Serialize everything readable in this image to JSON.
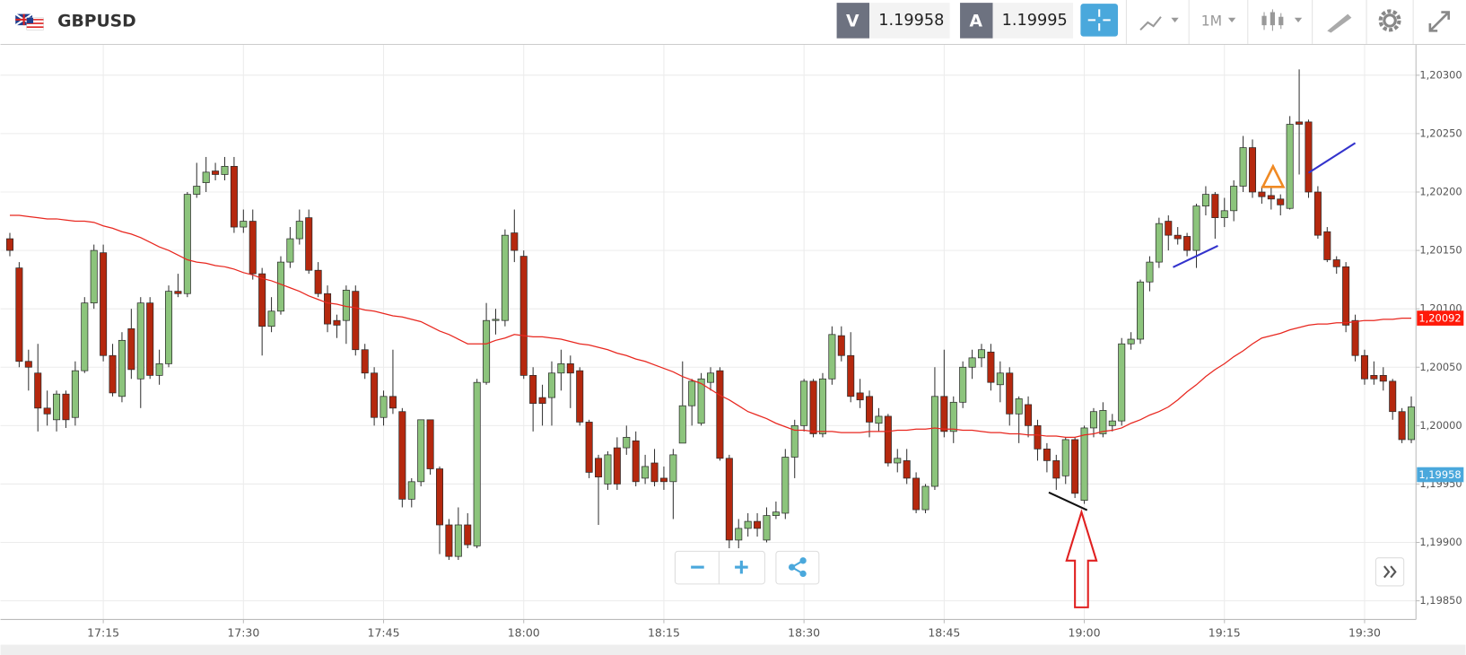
{
  "toolbar": {
    "symbol": "GBPUSD",
    "bid_label": "V",
    "bid": 1.19958,
    "ask_label": "A",
    "ask": 1.19995,
    "timeframe": "1M"
  },
  "chart_data": {
    "type": "candlestick",
    "categories": [
      null,
      null,
      null,
      null,
      null,
      null,
      null,
      null,
      null,
      null,
      "17:15",
      null,
      null,
      null,
      null,
      null,
      null,
      null,
      null,
      null,
      null,
      null,
      null,
      null,
      null,
      "17:30",
      null,
      null,
      null,
      null,
      null,
      null,
      null,
      null,
      null,
      null,
      null,
      null,
      null,
      null,
      "17:45",
      null,
      null,
      null,
      null,
      null,
      null,
      null,
      null,
      null,
      null,
      null,
      null,
      null,
      null,
      "18:00",
      null,
      null,
      null,
      null,
      null,
      null,
      null,
      null,
      null,
      null,
      null,
      null,
      null,
      null,
      "18:15",
      null,
      null,
      null,
      null,
      null,
      null,
      null,
      null,
      null,
      null,
      null,
      null,
      null,
      null,
      "18:30",
      null,
      null,
      null,
      null,
      null,
      null,
      null,
      null,
      null,
      null,
      null,
      null,
      null,
      null,
      "18:45",
      null,
      null,
      null,
      null,
      null,
      null,
      null,
      null,
      null,
      null,
      null,
      null,
      null,
      null,
      "19:00",
      null,
      null,
      null,
      null,
      null,
      null,
      null,
      null,
      null,
      null,
      null,
      null,
      null,
      null,
      "19:15",
      null,
      null,
      null,
      null,
      null,
      null,
      null,
      null,
      null,
      null,
      null,
      null,
      null,
      null,
      "19:30",
      null,
      null,
      null,
      null,
      null
    ],
    "open": [
      1.2016,
      1.20135,
      1.20055,
      1.20045,
      1.20015,
      1.20005,
      1.20027,
      1.20007,
      1.20047,
      1.20105,
      1.20148,
      1.2006,
      1.20025,
      1.20083,
      1.2004,
      1.20105,
      1.20043,
      1.20053,
      1.20115,
      1.20113,
      1.20198,
      1.20208,
      1.20218,
      1.20215,
      1.20222,
      1.2017,
      1.20175,
      1.2013,
      1.20085,
      1.20098,
      1.2014,
      1.2016,
      1.20178,
      1.20133,
      1.20113,
      1.2009,
      1.2009,
      1.20115,
      1.20065,
      1.20045,
      1.20007,
      1.20025,
      1.20012,
      1.19937,
      1.19952,
      1.20005,
      1.19963,
      1.19915,
      1.19888,
      1.19915,
      1.19897,
      1.20037,
      1.2009,
      1.2009,
      1.20165,
      1.20145,
      1.20043,
      1.20024,
      1.20024,
      1.20045,
      1.20053,
      1.20047,
      1.20003,
      1.19972,
      1.1995,
      1.19981,
      1.19981,
      1.19987,
      1.19955,
      1.19968,
      1.19955,
      1.19952,
      1.19985,
      1.20017,
      1.20002,
      1.20037,
      1.20047,
      1.19972,
      1.19902,
      1.19912,
      1.19918,
      1.19902,
      1.19923,
      1.19925,
      1.19973,
      1.2,
      1.20038,
      1.19993,
      1.2004,
      1.20077,
      1.2006,
      1.20028,
      1.20025,
      1.20002,
      1.20008,
      1.19968,
      1.1997,
      1.19955,
      1.19928,
      1.19948,
      1.20025,
      1.19995,
      1.2002,
      1.2005,
      1.20058,
      1.20063,
      1.20035,
      1.20045,
      1.2001,
      1.20018,
      1.2,
      1.1998,
      1.1997,
      1.19957,
      1.19988,
      1.19936,
      1.19998,
      1.19993,
      1.2,
      1.20004,
      1.2007,
      1.20074,
      1.20123,
      1.2014,
      1.20175,
      1.20163,
      1.20162,
      1.2015,
      1.20188,
      1.20198,
      1.20178,
      1.20184,
      1.20205,
      1.20238,
      1.202,
      1.20197,
      1.20194,
      1.20186,
      1.2026,
      1.2026,
      1.202,
      1.20166,
      1.20142,
      1.20136,
      1.2009,
      1.2006,
      1.20043,
      1.20043,
      1.20038,
      1.20012,
      1.19988
    ],
    "high": [
      1.20165,
      1.2014,
      1.20065,
      1.2007,
      1.2003,
      1.2003,
      1.2003,
      1.20055,
      1.2011,
      1.20155,
      1.20155,
      1.2007,
      1.2008,
      1.201,
      1.2011,
      1.2011,
      1.20065,
      1.2012,
      1.2013,
      1.202,
      1.20225,
      1.2023,
      1.20225,
      1.2023,
      1.2023,
      1.20185,
      1.20185,
      1.20135,
      1.2011,
      1.20145,
      1.2017,
      1.20185,
      1.20185,
      1.2014,
      1.2012,
      1.20095,
      1.2012,
      1.2012,
      1.2007,
      1.2005,
      1.2003,
      1.20065,
      1.20015,
      1.19955,
      1.20005,
      1.20005,
      1.19965,
      1.1992,
      1.1993,
      1.19925,
      1.2004,
      1.20105,
      1.201,
      1.20168,
      1.20185,
      1.2015,
      1.2005,
      1.20035,
      1.20055,
      1.20065,
      1.2006,
      1.2005,
      1.20005,
      1.19975,
      1.19978,
      1.1999,
      1.2,
      1.19995,
      1.19975,
      1.1998,
      1.19965,
      1.1998,
      1.20055,
      1.2004,
      1.20045,
      1.2005,
      1.2005,
      1.19975,
      1.1992,
      1.19925,
      1.19925,
      1.1993,
      1.19935,
      1.1998,
      1.20005,
      1.2004,
      1.2004,
      1.20045,
      1.20085,
      1.20085,
      1.2008,
      1.2004,
      1.2003,
      1.20015,
      1.2001,
      1.1998,
      1.1998,
      1.1996,
      1.1995,
      1.2005,
      1.20065,
      1.20025,
      1.20055,
      1.20065,
      1.2007,
      1.2007,
      1.20055,
      1.2005,
      1.20025,
      1.20025,
      1.20005,
      1.19985,
      1.19975,
      1.1999,
      1.1999,
      1.2,
      1.20015,
      1.2002,
      1.2001,
      1.20075,
      1.2008,
      1.20125,
      1.20145,
      1.20178,
      1.2018,
      1.2017,
      1.20165,
      1.2019,
      1.20205,
      1.202,
      1.20195,
      1.2021,
      1.20248,
      1.20245,
      1.20205,
      1.20205,
      1.20198,
      1.20265,
      1.20305,
      1.20262,
      1.20205,
      1.2017,
      1.20145,
      1.2014,
      1.20095,
      1.20065,
      1.20055,
      1.2005,
      1.2004,
      1.20015,
      1.20025
    ],
    "low": [
      1.20145,
      1.2005,
      1.2003,
      1.19995,
      1.2,
      1.19995,
      1.19998,
      1.2,
      1.20045,
      1.201,
      1.20055,
      1.20025,
      1.2002,
      1.2004,
      1.20015,
      1.2004,
      1.20035,
      1.2005,
      1.2011,
      1.2011,
      1.20195,
      1.202,
      1.2021,
      1.2021,
      1.20165,
      1.20165,
      1.20125,
      1.2006,
      1.2008,
      1.20095,
      1.20135,
      1.20155,
      1.2013,
      1.2011,
      1.2008,
      1.20075,
      1.2007,
      1.2006,
      1.2004,
      1.2,
      1.2,
      1.2001,
      1.1993,
      1.1993,
      1.19948,
      1.19958,
      1.1989,
      1.19885,
      1.19885,
      1.19895,
      1.19895,
      1.20035,
      1.20078,
      1.20085,
      1.2014,
      1.2004,
      1.19995,
      1.2,
      1.2,
      1.2003,
      1.20015,
      1.2,
      1.19955,
      1.19915,
      1.19945,
      1.19945,
      1.19975,
      1.19948,
      1.1995,
      1.19948,
      1.19945,
      1.1992,
      1.19985,
      1.2,
      1.2,
      1.2003,
      1.1997,
      1.19895,
      1.19895,
      1.19905,
      1.19905,
      1.199,
      1.1992,
      1.1992,
      1.19955,
      1.19995,
      1.1999,
      1.1999,
      1.20035,
      1.20055,
      1.2002,
      1.20015,
      1.1999,
      1.19995,
      1.19965,
      1.1996,
      1.1995,
      1.19925,
      1.19925,
      1.19945,
      1.1999,
      1.19985,
      1.20015,
      1.2004,
      1.2005,
      1.2003,
      1.2002,
      1.2,
      1.19985,
      1.1999,
      1.1997,
      1.1996,
      1.19945,
      1.1995,
      1.19938,
      1.19933,
      1.1999,
      1.1999,
      1.19995,
      1.2,
      1.20065,
      1.2007,
      1.20115,
      1.20135,
      1.2015,
      1.20155,
      1.20145,
      1.20135,
      1.2018,
      1.2016,
      1.2017,
      1.20175,
      1.202,
      1.20195,
      1.2019,
      1.20185,
      1.2018,
      1.20185,
      1.20215,
      1.20195,
      1.2016,
      1.2014,
      1.2013,
      1.2008,
      1.20055,
      1.20035,
      1.20035,
      1.2003,
      1.20005,
      1.19985,
      1.19985
    ],
    "close": [
      1.2015,
      1.20055,
      1.2005,
      1.20015,
      1.2001,
      1.20027,
      1.20005,
      1.20047,
      1.20105,
      1.2015,
      1.2006,
      1.20028,
      1.20073,
      1.20048,
      1.20105,
      1.20043,
      1.20053,
      1.20115,
      1.20113,
      1.20198,
      1.20205,
      1.20217,
      1.20215,
      1.20222,
      1.2017,
      1.20175,
      1.2013,
      1.20085,
      1.20098,
      1.2014,
      1.2016,
      1.20175,
      1.20133,
      1.20113,
      1.20087,
      1.20086,
      1.20116,
      1.20065,
      1.20045,
      1.20007,
      1.20025,
      1.20015,
      1.19937,
      1.19952,
      1.20005,
      1.19963,
      1.19915,
      1.19888,
      1.19915,
      1.19898,
      1.20037,
      1.2009,
      1.20091,
      1.20163,
      1.2015,
      1.20043,
      1.20019,
      1.20019,
      1.20045,
      1.20053,
      1.20045,
      1.20003,
      1.1996,
      1.19956,
      1.19975,
      1.1995,
      1.1999,
      1.19952,
      1.19965,
      1.19952,
      1.19952,
      1.19975,
      1.20017,
      1.20038,
      1.2004,
      1.20045,
      1.19972,
      1.19902,
      1.19912,
      1.19918,
      1.19912,
      1.19923,
      1.19926,
      1.19973,
      1.2,
      1.20038,
      1.19993,
      1.2004,
      1.20078,
      1.2006,
      1.20025,
      1.20022,
      1.20003,
      1.20008,
      1.19968,
      1.19972,
      1.19955,
      1.19928,
      1.19948,
      1.20025,
      1.19995,
      1.2002,
      1.2005,
      1.20058,
      1.20065,
      1.20037,
      1.20045,
      1.2001,
      1.20023,
      1.2,
      1.1998,
      1.1997,
      1.19955,
      1.19988,
      1.19942,
      1.19998,
      1.20012,
      1.20013,
      1.20004,
      1.2007,
      1.20074,
      1.20123,
      1.2014,
      1.20173,
      1.20163,
      1.2016,
      1.2015,
      1.20188,
      1.20198,
      1.20178,
      1.20184,
      1.20205,
      1.20238,
      1.202,
      1.20196,
      1.20194,
      1.20189,
      1.20258,
      1.20258,
      1.202,
      1.20163,
      1.20142,
      1.20136,
      1.20086,
      1.2006,
      1.2004,
      1.2004,
      1.20038,
      1.20012,
      1.19988,
      1.20016
    ],
    "up_color": "#8cc47c",
    "down_color": "#b5280e",
    "lines": [
      {
        "color": "#e8271f",
        "values": [
          1.2018,
          1.2018,
          1.20179,
          1.20178,
          1.20177,
          1.20177,
          1.20176,
          1.20175,
          1.20175,
          1.20174,
          1.20171,
          1.20169,
          1.20166,
          1.20164,
          1.20161,
          1.20157,
          1.20153,
          1.2015,
          1.20146,
          1.20142,
          1.2014,
          1.20139,
          1.20137,
          1.20136,
          1.20134,
          1.20131,
          1.20129,
          1.20126,
          1.20124,
          1.20121,
          1.20118,
          1.20115,
          1.20111,
          1.20108,
          1.20105,
          1.20104,
          1.20102,
          1.20101,
          1.20099,
          1.20098,
          1.20096,
          1.20094,
          1.20093,
          1.20091,
          1.20089,
          1.20085,
          1.20081,
          1.20078,
          1.20074,
          1.2007,
          1.2007,
          1.2007,
          1.20073,
          1.20075,
          1.20078,
          1.20077,
          1.20076,
          1.20076,
          1.20075,
          1.20074,
          1.20072,
          1.2007,
          1.20069,
          1.20067,
          1.20065,
          1.20062,
          1.2006,
          1.20057,
          1.20055,
          1.20052,
          1.20049,
          1.20046,
          1.20042,
          1.20039,
          1.20036,
          1.20031,
          1.20026,
          1.20022,
          1.20017,
          1.20012,
          1.20009,
          1.20006,
          1.20002,
          1.19999,
          1.19996,
          1.19996,
          1.19995,
          1.19995,
          1.19995,
          1.19994,
          1.19994,
          1.19994,
          1.19995,
          1.19995,
          1.19995,
          1.19996,
          1.19996,
          1.19997,
          1.19997,
          1.19998,
          1.19997,
          1.19997,
          1.19996,
          1.19996,
          1.19995,
          1.19994,
          1.19994,
          1.19993,
          1.19993,
          1.19992,
          1.19992,
          1.19991,
          1.19991,
          1.1999,
          1.1999,
          1.19992,
          1.19993,
          1.19995,
          1.19996,
          1.19998,
          1.20002,
          1.20005,
          1.20009,
          1.20012,
          1.20016,
          1.20022,
          1.20029,
          1.20035,
          1.20042,
          1.20048,
          1.20053,
          1.20059,
          1.20064,
          1.2007,
          1.20075,
          1.20077,
          1.20079,
          1.20082,
          1.20084,
          1.20086,
          1.20087,
          1.20087,
          1.20088,
          1.20088,
          1.20089,
          1.2009,
          1.2009,
          1.20091,
          1.20091,
          1.20092,
          1.20092
        ]
      }
    ],
    "ylim": [
      1.19834,
      1.20326
    ],
    "yticks": [
      {
        "value": 1.1985,
        "label": "1,19850"
      },
      {
        "value": 1.199,
        "label": "1,19900"
      },
      {
        "value": 1.1995,
        "label": "1,19950"
      },
      {
        "value": 1.2,
        "label": "1,20000"
      },
      {
        "value": 1.2005,
        "label": "1,20050"
      },
      {
        "value": 1.201,
        "label": "1,20100"
      },
      {
        "value": 1.2015,
        "label": "1,20150"
      },
      {
        "value": 1.202,
        "label": "1,20200"
      },
      {
        "value": 1.2025,
        "label": "1,20250"
      },
      {
        "value": 1.203,
        "label": "1,20300"
      }
    ],
    "grid": true,
    "price_tags": [
      {
        "value": 1.20092,
        "label": "1,20092",
        "color": "#ff1a0a"
      },
      {
        "value": 1.19958,
        "label": "1,19958",
        "color": "#4aa8dc"
      }
    ]
  }
}
